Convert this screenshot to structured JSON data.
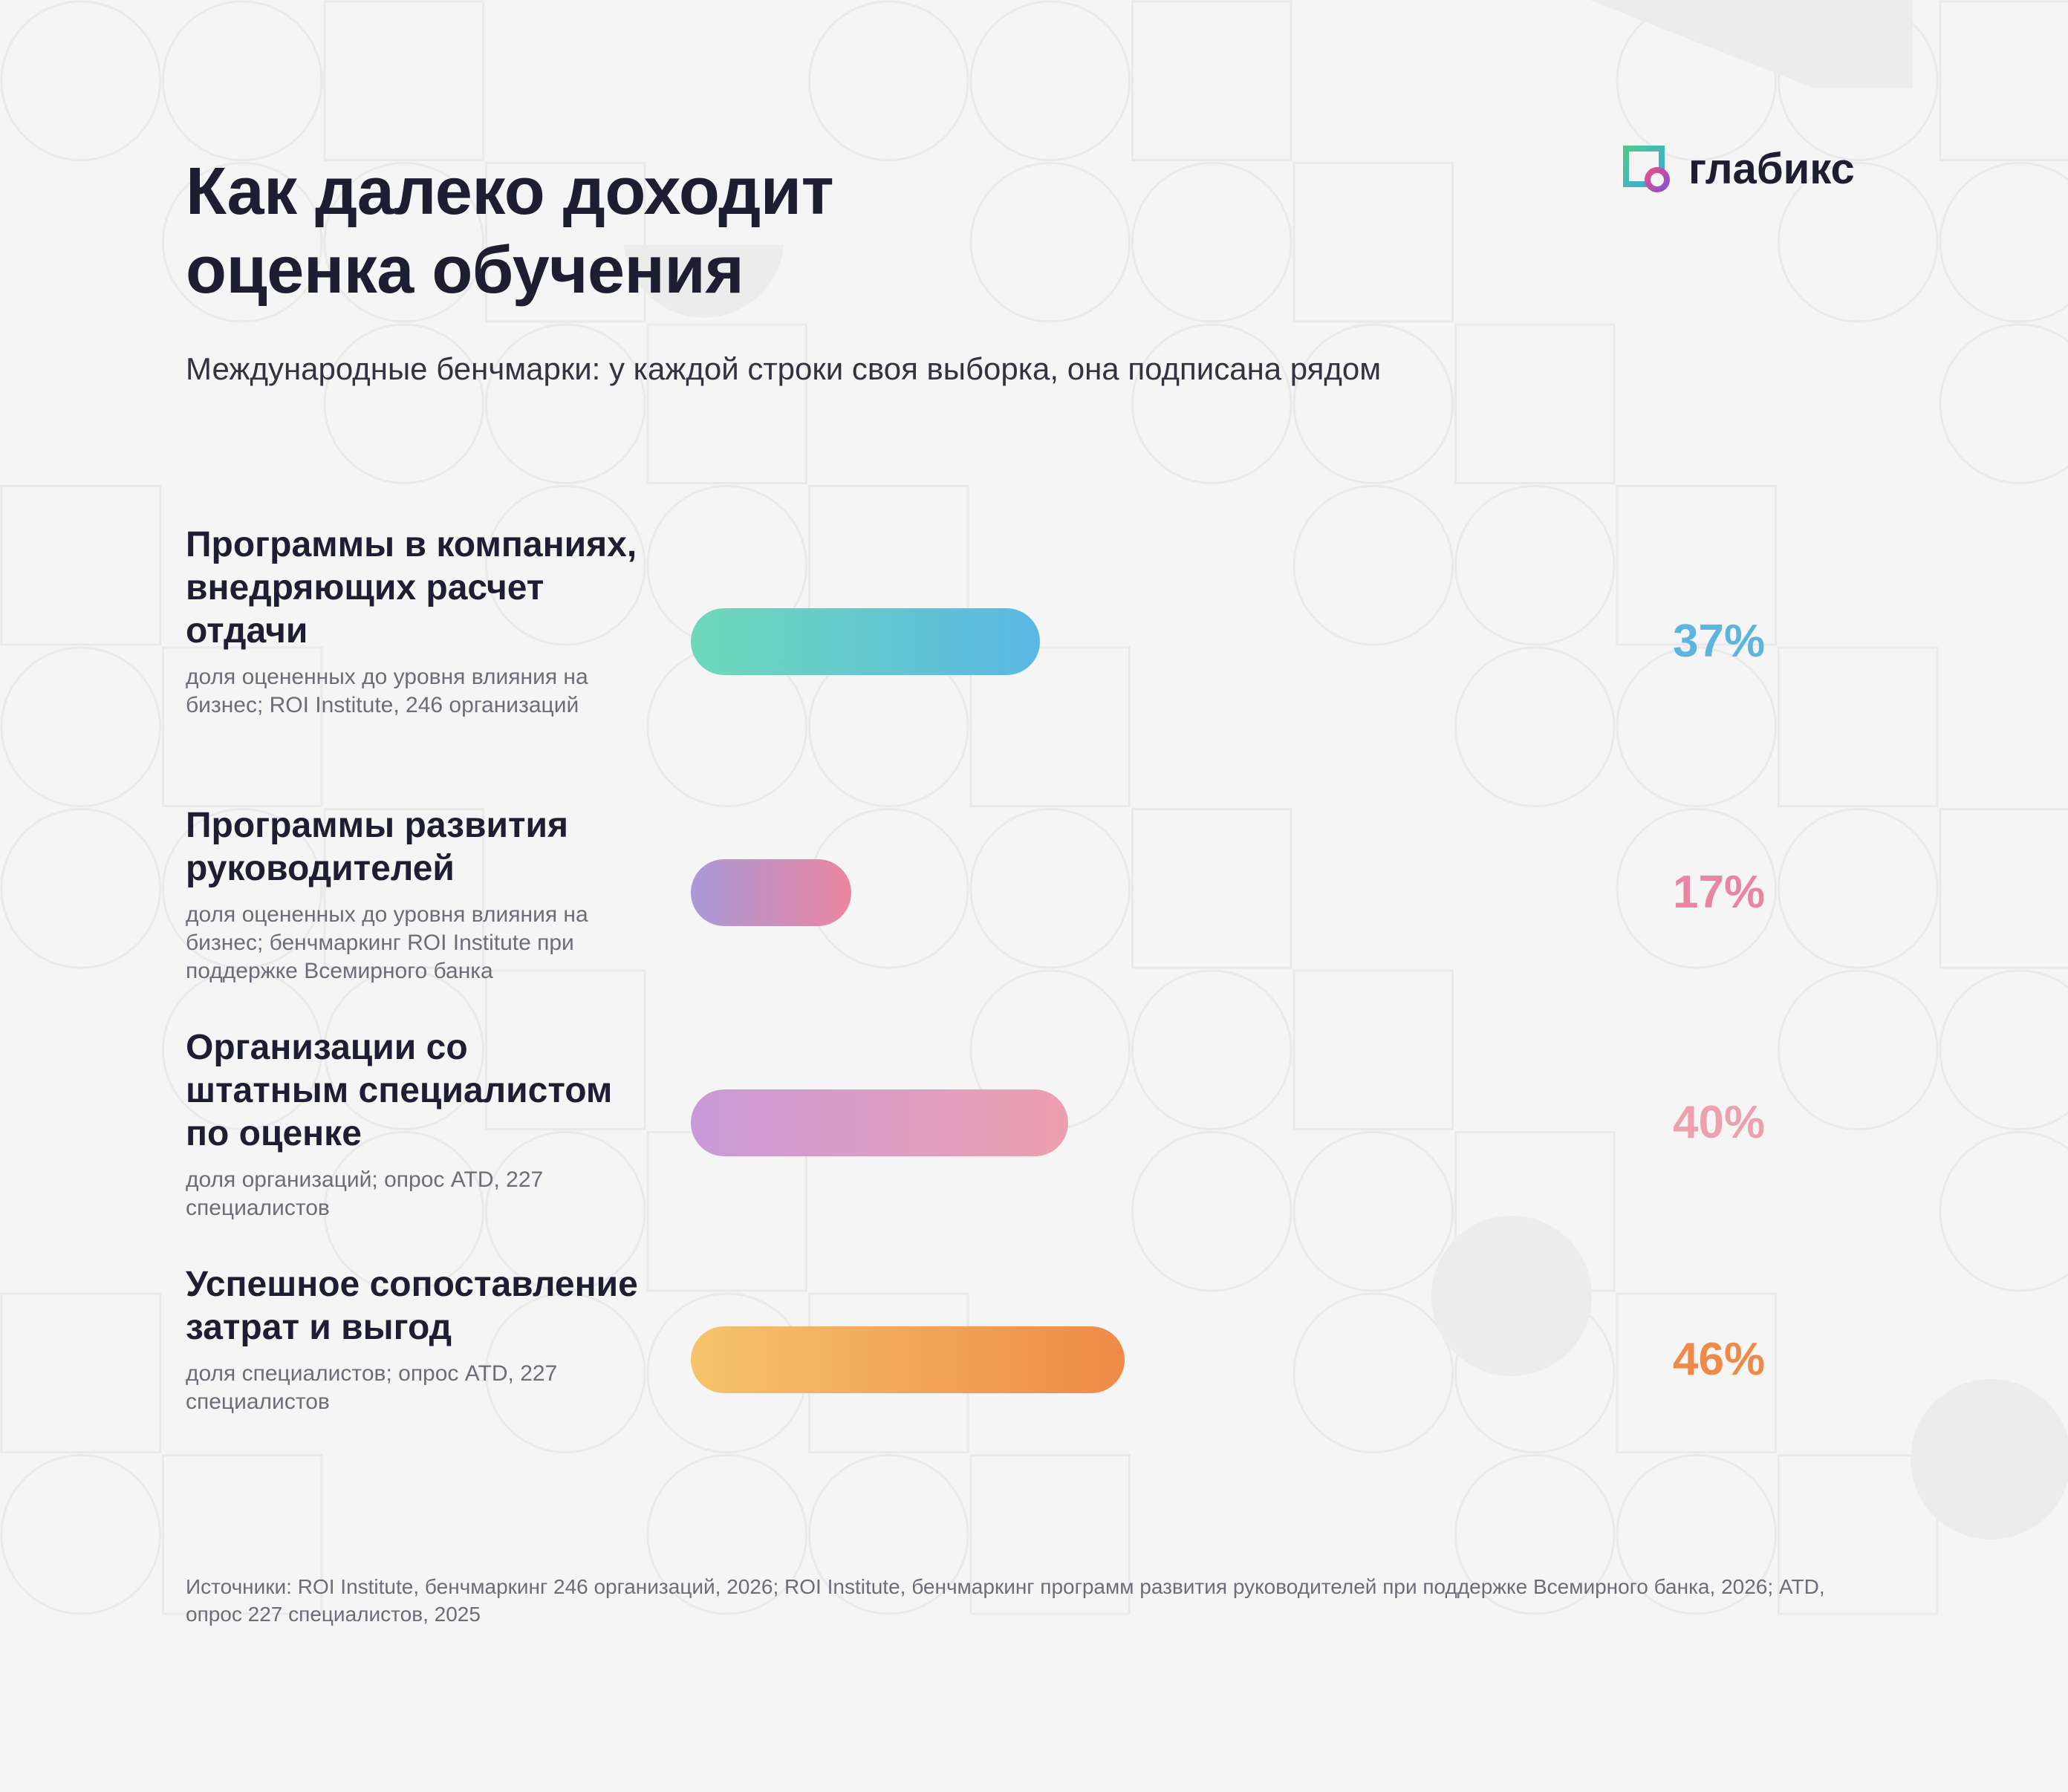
{
  "header": {
    "title_line1": "Как далеко доходит",
    "title_line2": "оценка обучения",
    "subtitle": "Международные бенчмарки: у каждой строки своя выборка, она подписана рядом"
  },
  "logo": {
    "text": "глабикс",
    "icon": "glabix-logo-icon"
  },
  "chart_data": {
    "type": "bar",
    "orientation": "horizontal",
    "unit": "%",
    "xlim": [
      0,
      100
    ],
    "grid": false,
    "legend": "none",
    "categories": [
      "Программы в компаниях, внедряющих расчет отдачи",
      "Программы развития руководителей",
      "Организации со штатным специалистом по оценке",
      "Успешное сопоставление затрат и выгод"
    ],
    "notes": [
      "доля оцененных до уровня влияния на бизнес; ROI Institute, 246 организаций",
      "доля оцененных до уровня влияния на бизнес; бенчмаркинг ROI Institute при поддержке Всемирного банка",
      "доля организаций; опрос ATD, 227 специалистов",
      "доля специалистов; опрос ATD, 227 специалистов"
    ],
    "values": [
      37,
      17,
      40,
      46
    ],
    "value_labels": [
      "37%",
      "17%",
      "40%",
      "46%"
    ],
    "colors": [
      [
        "#6fd8b8",
        "#5bb7e4"
      ],
      [
        "#a99ad8",
        "#eb86a0"
      ],
      [
        "#c99ad8",
        "#eda0ae"
      ],
      [
        "#f5c46c",
        "#ee8a48"
      ]
    ],
    "label_colors": [
      "#5cb4df",
      "#ea84a0",
      "#eda0ae",
      "#ee8a48"
    ]
  },
  "footer": {
    "sources": "Источники: ROI Institute, бенчмаркинг 246 организаций, 2026; ROI Institute, бенчмаркинг программ развития руководителей при поддержке Всемирного банка, 2026; ATD, опрос 227 специалистов, 2025"
  }
}
